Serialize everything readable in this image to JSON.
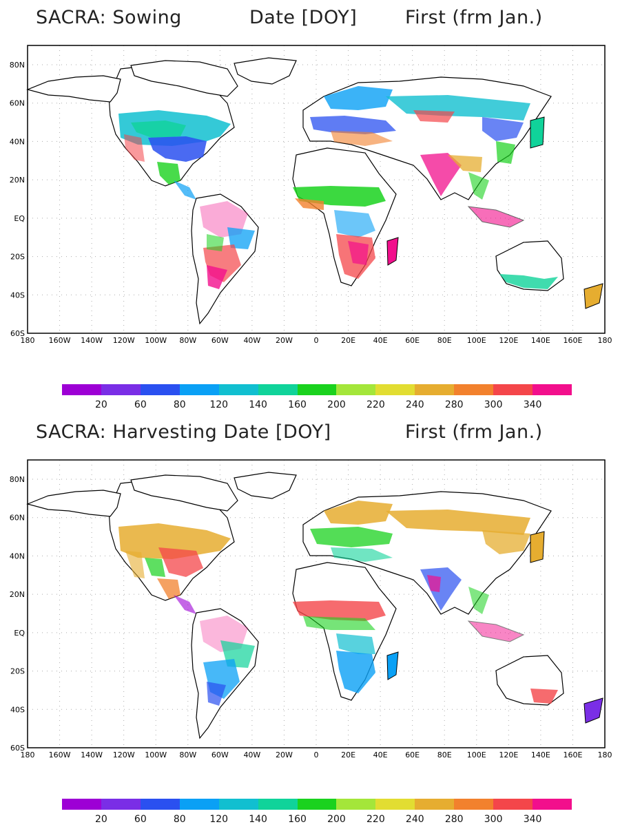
{
  "panels": [
    {
      "id": "sowing",
      "title_parts": [
        "SACRA: Sowing",
        "Date [DOY]",
        "First (frm Jan.)"
      ]
    },
    {
      "id": "harvesting",
      "title_parts": [
        "SACRA: Harvesting Date [DOY]",
        "",
        "First (frm Jan.)"
      ]
    }
  ],
  "map_axes": {
    "lon_ticks": [
      "180",
      "160W",
      "140W",
      "120W",
      "100W",
      "80W",
      "60W",
      "40W",
      "20W",
      "0",
      "20E",
      "40E",
      "60E",
      "80E",
      "100E",
      "120E",
      "140E",
      "160E",
      "180"
    ],
    "lat_ticks": [
      "80N",
      "60N",
      "40N",
      "20N",
      "EQ",
      "20S",
      "40S",
      "60S"
    ],
    "lon_range": [
      -180,
      180
    ],
    "lat_range": [
      -60,
      90
    ],
    "grid": "dotted"
  },
  "colorbar": {
    "colors": [
      "#9d00d5",
      "#7a2ee6",
      "#2a50f0",
      "#0aa0f5",
      "#11bfd0",
      "#10d39a",
      "#1ad21e",
      "#a4e63a",
      "#e2dd32",
      "#e6ad30",
      "#f2812d",
      "#f4464a",
      "#f20f8c"
    ],
    "labels": [
      "20",
      "60",
      "80",
      "120",
      "140",
      "160",
      "200",
      "220",
      "240",
      "280",
      "300",
      "340"
    ]
  }
}
